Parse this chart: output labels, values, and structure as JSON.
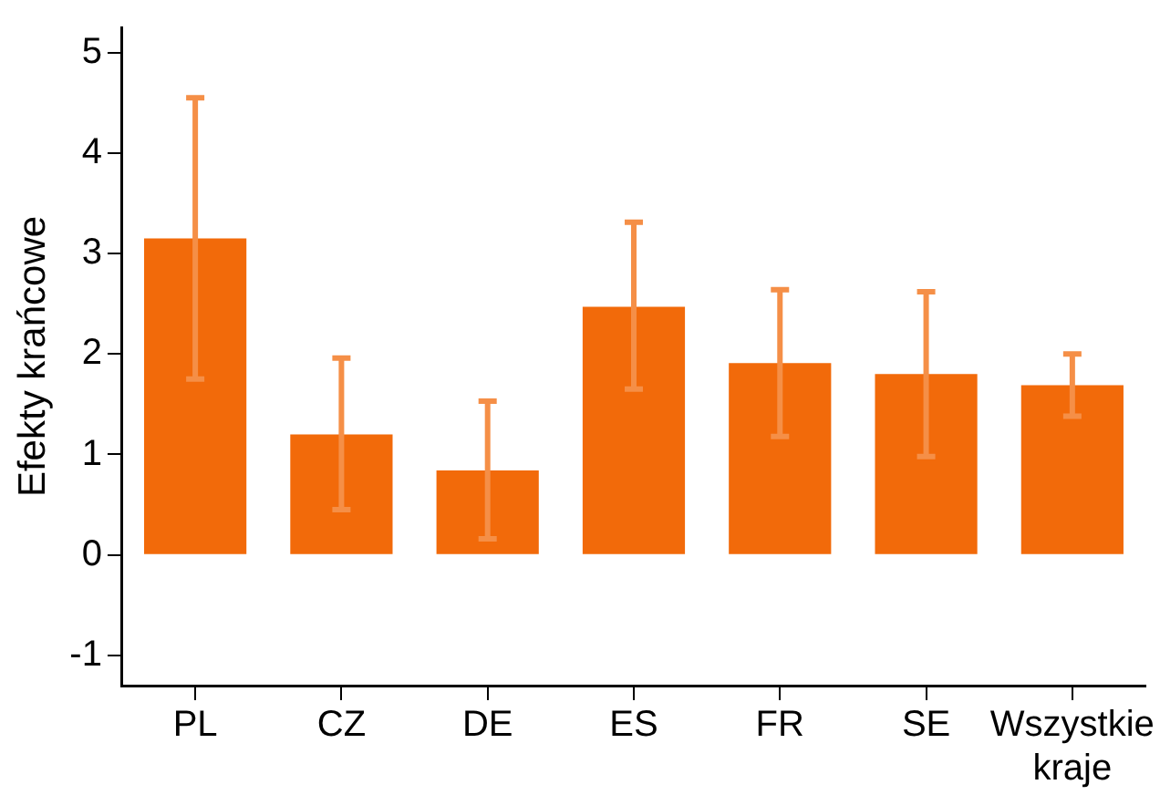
{
  "chart_data": {
    "type": "bar",
    "ylabel": "Efekty krańcowe",
    "categories": [
      "PL",
      "CZ",
      "DE",
      "ES",
      "FR",
      "SE",
      "Wszystkie kraje"
    ],
    "series": [
      {
        "color": "#f26a0a",
        "values": [
          3.15,
          1.2,
          0.84,
          2.47,
          1.91,
          1.8,
          1.69
        ],
        "errors": [
          [
            1.75,
            4.55
          ],
          [
            0.45,
            1.96
          ],
          [
            0.16,
            1.53
          ],
          [
            1.65,
            3.31
          ],
          [
            1.18,
            2.64
          ],
          [
            0.98,
            2.62
          ],
          [
            1.38,
            2.0
          ]
        ]
      }
    ],
    "ylim": [
      -1.3,
      5.25
    ],
    "yticks": [
      -1,
      0,
      1,
      2,
      3,
      4,
      5
    ],
    "grid": false,
    "legend": false
  }
}
